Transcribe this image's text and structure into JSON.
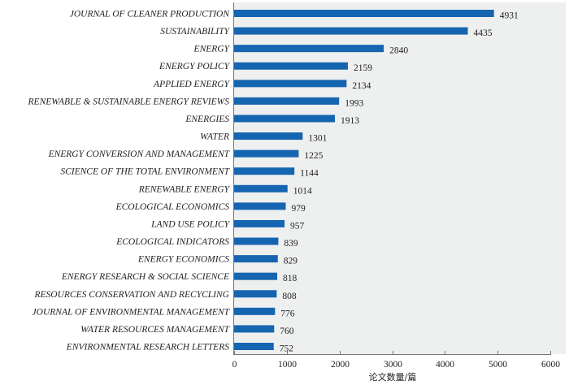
{
  "chart_data": {
    "type": "bar",
    "orientation": "horizontal",
    "title": "",
    "xlabel": "论文数量/篇",
    "ylabel": "",
    "xlim": [
      0,
      6000
    ],
    "xticks": [
      0,
      1000,
      2000,
      3000,
      4000,
      5000,
      6000
    ],
    "grid": false,
    "bar_color": "#1565b0",
    "plot_background": "#eeefef",
    "categories": [
      "JOURNAL OF CLEANER PRODUCTION",
      "SUSTAINABILITY",
      "ENERGY",
      "ENERGY POLICY",
      "APPLIED ENERGY",
      "RENEWABLE & SUSTAINABLE ENERGY REVIEWS",
      "ENERGIES",
      "WATER",
      "ENERGY CONVERSION AND MANAGEMENT",
      "SCIENCE OF THE TOTAL ENVIRONMENT",
      "RENEWABLE ENERGY",
      "ECOLOGICAL ECONOMICS",
      "LAND USE POLICY",
      "ECOLOGICAL INDICATORS",
      "ENERGY ECONOMICS",
      "ENERGY RESEARCH & SOCIAL SCIENCE",
      "RESOURCES CONSERVATION AND RECYCLING",
      "JOURNAL OF ENVIRONMENTAL MANAGEMENT",
      "WATER RESOURCES MANAGEMENT",
      "ENVIRONMENTAL RESEARCH LETTERS"
    ],
    "values": [
      4931,
      4435,
      2840,
      2159,
      2134,
      1993,
      1913,
      1301,
      1225,
      1144,
      1014,
      979,
      957,
      839,
      829,
      818,
      808,
      776,
      760,
      752
    ]
  }
}
